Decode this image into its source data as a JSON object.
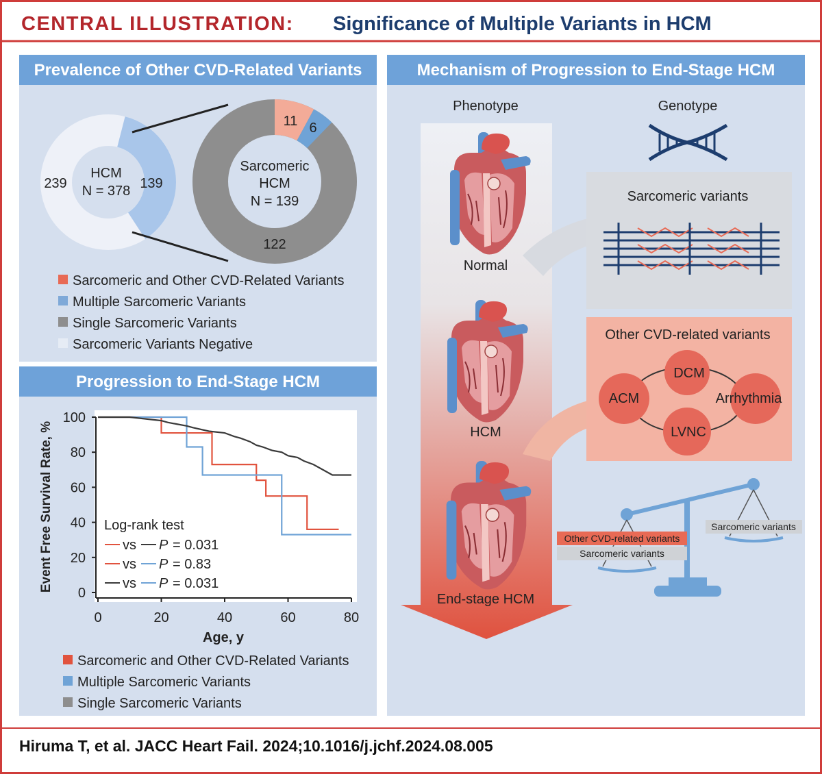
{
  "header": {
    "prefix": "CENTRAL ILLUSTRATION:",
    "title": "Significance of Multiple Variants in HCM"
  },
  "panels": {
    "prevalence": {
      "title": "Prevalence of Other CVD-Related Variants"
    },
    "progression": {
      "title": "Progression to End-Stage HCM"
    },
    "mechanism": {
      "title": "Mechanism of Progression to End-Stage HCM"
    }
  },
  "donut_hcm": {
    "line1": "HCM",
    "line2": "N = 378",
    "left_value": "239",
    "right_value": "139"
  },
  "donut_sarc": {
    "line1": "Sarcomeric",
    "line2": "HCM",
    "line3": "N = 139",
    "v_other": "11",
    "v_multi": "6",
    "v_single": "122"
  },
  "legend_prevalence": [
    {
      "label": "Sarcomeric and Other CVD-Related Variants",
      "color": "#e86a55"
    },
    {
      "label": "Multiple Sarcomeric Variants",
      "color": "#7fa9d8"
    },
    {
      "label": "Single Sarcomeric Variants",
      "color": "#8e8e8e"
    },
    {
      "label": "Sarcomeric Variants Negative",
      "color": "#e6ecf5"
    }
  ],
  "km": {
    "ylabel": "Event Free Survival Rate, %",
    "xlabel": "Age, y",
    "yticks": [
      "0",
      "20",
      "40",
      "60",
      "80",
      "100"
    ],
    "xticks": [
      "0",
      "20",
      "40",
      "60",
      "80"
    ],
    "logrank_title": "Log-rank test",
    "tests": [
      {
        "vs": "vs",
        "p_label": "P",
        "p_value": "= 0.031"
      },
      {
        "vs": "vs",
        "p_label": "P",
        "p_value": "= 0.83"
      },
      {
        "vs": "vs",
        "p_label": "P",
        "p_value": "= 0.031"
      }
    ]
  },
  "chart_data": {
    "type": "line",
    "title": "Progression to End-Stage HCM",
    "xlabel": "Age, y",
    "ylabel": "Event Free Survival Rate, %",
    "xlim": [
      0,
      80
    ],
    "ylim": [
      0,
      100
    ],
    "series": [
      {
        "name": "Sarcomeric and Other CVD-Related Variants",
        "color": "#e1533e",
        "x": [
          0,
          20,
          20,
          36,
          36,
          50,
          50,
          53,
          53,
          66,
          66,
          76
        ],
        "y": [
          100,
          100,
          91,
          91,
          73,
          73,
          64,
          64,
          55,
          55,
          36,
          36
        ]
      },
      {
        "name": "Multiple Sarcomeric Variants",
        "color": "#6fa3d6",
        "x": [
          0,
          28,
          28,
          33,
          33,
          58,
          58,
          80
        ],
        "y": [
          100,
          100,
          83,
          83,
          67,
          67,
          33,
          33
        ]
      },
      {
        "name": "Single Sarcomeric Variants",
        "color": "#3a3a3a",
        "x": [
          0,
          10,
          20,
          22,
          25,
          28,
          30,
          35,
          40,
          43,
          45,
          48,
          50,
          52,
          55,
          58,
          60,
          63,
          65,
          68,
          70,
          72,
          74,
          80
        ],
        "y": [
          100,
          100,
          98,
          97,
          96,
          95,
          94,
          92,
          91,
          89,
          88,
          86,
          84,
          83,
          81,
          80,
          78,
          77,
          75,
          73,
          71,
          69,
          67,
          67
        ]
      }
    ]
  },
  "legend_progression": [
    {
      "label": "Sarcomeric and Other CVD-Related Variants",
      "color": "#e1533e"
    },
    {
      "label": "Multiple Sarcomeric Variants",
      "color": "#6fa3d6"
    },
    {
      "label": "Single Sarcomeric Variants",
      "color": "#8e8e8e"
    }
  ],
  "mechanism": {
    "phenotype_label": "Phenotype",
    "genotype_label": "Genotype",
    "stage_normal": "Normal",
    "stage_hcm": "HCM",
    "stage_end": "End-stage HCM",
    "sarc_box_title": "Sarcomeric variants",
    "other_box_title": "Other CVD-related variants",
    "nodes": [
      "DCM",
      "ACM",
      "Arrhythmia",
      "LVNC"
    ],
    "scale_left_top": "Other CVD-related variants",
    "scale_left_bottom": "Sarcomeric variants",
    "scale_right": "Sarcomeric variants"
  },
  "citation": "Hiruma T, et al. JACC Heart Fail. 2024;10.1016/j.jchf.2024.08.005"
}
